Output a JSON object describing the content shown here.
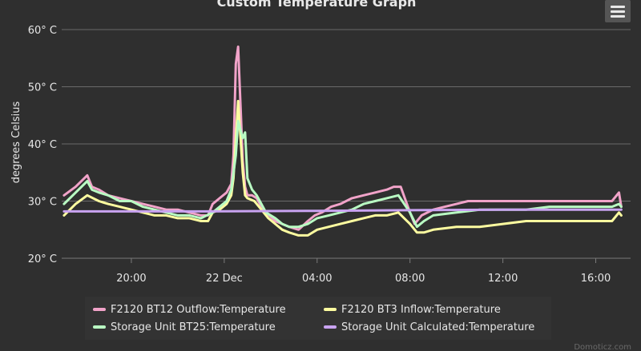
{
  "chart_data": {
    "type": "line",
    "title": "Custom Temperature Graph",
    "ylabel": "degrees Celsius",
    "xlabel": "",
    "ylim": [
      20,
      60
    ],
    "y_ticks": [
      {
        "value": 20,
        "label": "20° C"
      },
      {
        "value": 30,
        "label": "30° C"
      },
      {
        "value": 40,
        "label": "40° C"
      },
      {
        "value": 50,
        "label": "50° C"
      },
      {
        "value": 60,
        "label": "60° C"
      }
    ],
    "xlim": [
      17.0,
      41.5
    ],
    "x_unit": "hours since 21 Dec 00:00",
    "x_ticks": [
      {
        "value": 20,
        "label": "20:00"
      },
      {
        "value": 24,
        "label": "22 Dec"
      },
      {
        "value": 28,
        "label": "04:00"
      },
      {
        "value": 32,
        "label": "08:00"
      },
      {
        "value": 36,
        "label": "12:00"
      },
      {
        "value": 40,
        "label": "16:00"
      }
    ],
    "grid": true,
    "legend_position": "bottom",
    "credit": "Domoticz.com",
    "series": [
      {
        "name": "F2120 BT12 Outflow:Temperature",
        "color": "#f1a3c9",
        "x": [
          17.1,
          17.6,
          18.1,
          18.3,
          18.6,
          19.0,
          19.5,
          20.0,
          20.5,
          21.0,
          21.5,
          22.0,
          22.5,
          23.0,
          23.3,
          23.5,
          23.8,
          24.1,
          24.3,
          24.4,
          24.5,
          24.6,
          24.8,
          24.9,
          25.0,
          25.2,
          25.4,
          25.6,
          25.8,
          26.2,
          26.5,
          26.8,
          27.2,
          27.6,
          27.9,
          28.2,
          28.6,
          29.0,
          29.5,
          30.0,
          30.5,
          31.0,
          31.3,
          31.6,
          32.0,
          32.2,
          32.5,
          33.0,
          33.5,
          34.0,
          34.5,
          35.0,
          36.0,
          37.0,
          38.0,
          39.0,
          40.0,
          40.7,
          41.0,
          41.1
        ],
        "values": [
          31,
          32.5,
          34.5,
          32.5,
          32,
          31,
          30.5,
          30,
          29.5,
          29,
          28.5,
          28.5,
          28,
          27.5,
          27.5,
          29.5,
          30.5,
          31.5,
          33,
          38,
          54,
          57,
          37,
          32.5,
          31,
          31,
          30.5,
          29,
          28,
          26.5,
          26,
          25.5,
          25,
          26.5,
          27.5,
          28,
          29,
          29.5,
          30.5,
          31,
          31.5,
          32,
          32.5,
          32.5,
          28,
          26,
          27.5,
          28.5,
          29,
          29.5,
          30,
          30,
          30,
          30,
          30,
          30,
          30,
          30,
          31.5,
          29
        ]
      },
      {
        "name": "F2120 BT3 Inflow:Temperature",
        "color": "#fdfca0",
        "x": [
          17.1,
          17.6,
          18.1,
          18.6,
          19.0,
          19.5,
          20.0,
          20.5,
          21.0,
          21.5,
          22.0,
          22.5,
          23.0,
          23.3,
          23.5,
          23.8,
          24.1,
          24.3,
          24.4,
          24.5,
          24.6,
          24.8,
          24.9,
          25.0,
          25.3,
          25.6,
          25.9,
          26.2,
          26.5,
          26.8,
          27.2,
          27.6,
          28.0,
          28.5,
          29.0,
          29.5,
          30.0,
          30.5,
          31.0,
          31.5,
          32.0,
          32.3,
          32.6,
          33.0,
          34.0,
          35.0,
          36.0,
          37.0,
          38.0,
          39.0,
          40.0,
          40.7,
          41.0,
          41.1
        ],
        "values": [
          27.5,
          29.5,
          31,
          30,
          29.5,
          29,
          28.5,
          28,
          27.5,
          27.5,
          27,
          27,
          26.5,
          26.5,
          28,
          28.5,
          29.5,
          31,
          34,
          41,
          47.5,
          35,
          31,
          30.5,
          30,
          28.5,
          27,
          26,
          25,
          24.5,
          24,
          24,
          25,
          25.5,
          26,
          26.5,
          27,
          27.5,
          27.5,
          28,
          26,
          24.5,
          24.5,
          25,
          25.5,
          25.5,
          26,
          26.5,
          26.5,
          26.5,
          26.5,
          26.5,
          28,
          27.5
        ]
      },
      {
        "name": "Storage Unit BT25:Temperature",
        "color": "#b9fcc3",
        "x": [
          17.1,
          17.6,
          18.1,
          18.3,
          18.6,
          19.0,
          19.5,
          20.0,
          20.5,
          21.0,
          21.5,
          22.0,
          22.5,
          23.0,
          23.5,
          23.8,
          24.1,
          24.3,
          24.5,
          24.6,
          24.8,
          24.9,
          25.0,
          25.2,
          25.4,
          25.6,
          25.8,
          26.2,
          26.5,
          26.8,
          27.2,
          27.6,
          28.0,
          28.5,
          29.0,
          29.5,
          30.0,
          30.5,
          31.0,
          31.5,
          32.0,
          32.3,
          32.6,
          33.0,
          34.0,
          35.0,
          36.0,
          37.0,
          38.0,
          39.0,
          40.0,
          40.7,
          41.0,
          41.1
        ],
        "values": [
          29.5,
          31.5,
          33.5,
          32,
          31.5,
          31,
          30,
          30,
          29,
          28.5,
          28,
          27.5,
          27.5,
          27,
          28,
          29,
          30,
          32,
          38,
          44,
          41,
          42,
          34,
          32,
          31,
          29.5,
          28,
          27,
          26,
          25.5,
          25.5,
          26,
          27,
          27.5,
          28,
          28.5,
          29.5,
          30,
          30.5,
          31,
          28,
          25.5,
          26.5,
          27.5,
          28,
          28.5,
          28.5,
          28.5,
          29,
          29,
          29,
          29,
          29.5,
          29
        ]
      },
      {
        "name": "Storage Unit Calculated:Temperature",
        "color": "#c9a3f1",
        "x": [
          17.1,
          23.0,
          28.0,
          32.0,
          36.0,
          41.1
        ],
        "values": [
          28.2,
          28.2,
          28.3,
          28.4,
          28.5,
          28.5
        ]
      }
    ]
  },
  "ui": {
    "menu_icon": "hamburger-menu-icon"
  }
}
